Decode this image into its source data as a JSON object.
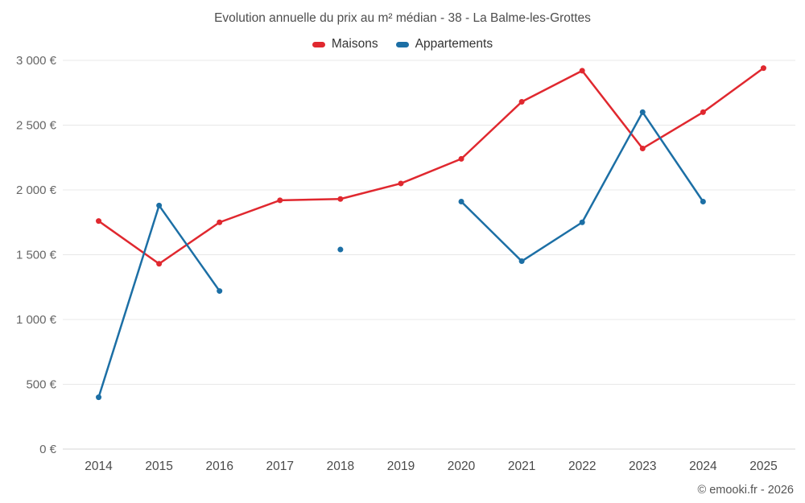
{
  "page": {
    "footer": "© emooki.fr - 2026"
  },
  "chart_data": {
    "type": "line",
    "title": "Evolution annuelle du prix au m² médian - 38 - La Balme-les-Grottes",
    "categories": [
      "2014",
      "2015",
      "2016",
      "2017",
      "2018",
      "2019",
      "2020",
      "2021",
      "2022",
      "2023",
      "2024",
      "2025"
    ],
    "series": [
      {
        "name": "Maisons",
        "color": "#e0282f",
        "values": [
          1760,
          1430,
          1750,
          1920,
          1930,
          2050,
          2240,
          2680,
          2920,
          2320,
          2600,
          2940
        ]
      },
      {
        "name": "Appartements",
        "color": "#1c6fa5",
        "values": [
          400,
          1880,
          1220,
          null,
          1540,
          null,
          1910,
          1450,
          1750,
          2600,
          1910,
          null
        ]
      }
    ],
    "ylim": [
      0,
      3000
    ],
    "yticks": [
      0,
      500,
      1000,
      1500,
      2000,
      2500,
      3000
    ],
    "ytick_labels": [
      "0 €",
      "500 €",
      "1 000 €",
      "1 500 €",
      "2 000 €",
      "2 500 €",
      "3 000 €"
    ],
    "grid": "horizontal",
    "legend_position": "top"
  }
}
